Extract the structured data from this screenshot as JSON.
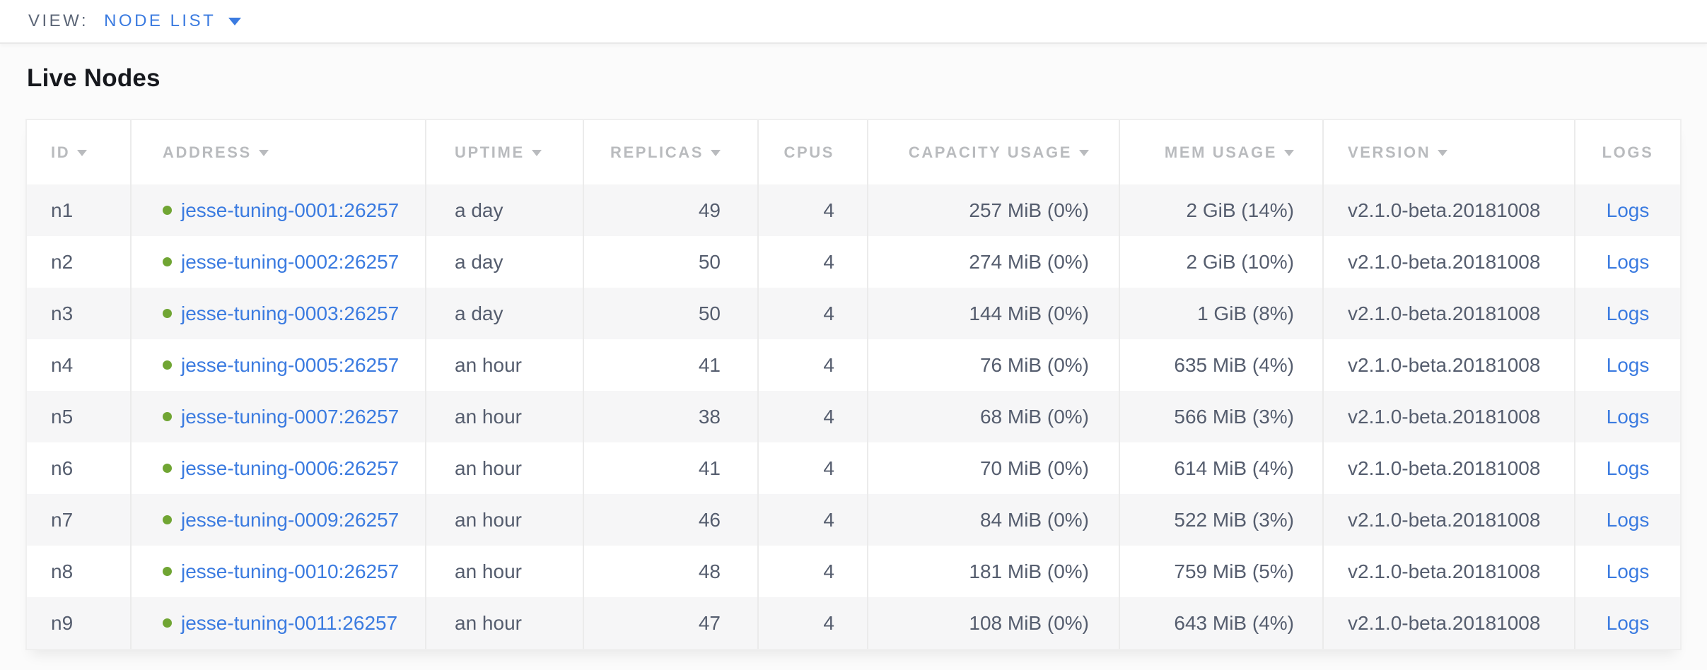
{
  "colors": {
    "link_blue": "#3b7be0",
    "status_green": "#70a533",
    "header_gray": "#b9bbbe",
    "cell_text": "#555d6e"
  },
  "view_bar": {
    "label": "VIEW:",
    "selected_view": "NODE LIST",
    "caret_icon": "caret-down"
  },
  "page": {
    "title": "Live Nodes"
  },
  "table": {
    "columns": [
      {
        "key": "id",
        "label": "ID",
        "sortable": true
      },
      {
        "key": "address",
        "label": "ADDRESS",
        "sortable": true
      },
      {
        "key": "uptime",
        "label": "UPTIME",
        "sortable": true
      },
      {
        "key": "replicas",
        "label": "REPLICAS",
        "sortable": true
      },
      {
        "key": "cpus",
        "label": "CPUS",
        "sortable": false
      },
      {
        "key": "capacity",
        "label": "CAPACITY USAGE",
        "sortable": true
      },
      {
        "key": "mem",
        "label": "MEM USAGE",
        "sortable": true
      },
      {
        "key": "version",
        "label": "VERSION",
        "sortable": true
      },
      {
        "key": "logs",
        "label": "LOGS",
        "sortable": false
      }
    ],
    "rows": [
      {
        "id": "n1",
        "status": "healthy",
        "address": "jesse-tuning-0001:26257",
        "uptime": "a day",
        "replicas": "49",
        "cpus": "4",
        "capacity": "257 MiB (0%)",
        "mem": "2 GiB (14%)",
        "version": "v2.1.0-beta.20181008",
        "logs": "Logs"
      },
      {
        "id": "n2",
        "status": "healthy",
        "address": "jesse-tuning-0002:26257",
        "uptime": "a day",
        "replicas": "50",
        "cpus": "4",
        "capacity": "274 MiB (0%)",
        "mem": "2 GiB (10%)",
        "version": "v2.1.0-beta.20181008",
        "logs": "Logs"
      },
      {
        "id": "n3",
        "status": "healthy",
        "address": "jesse-tuning-0003:26257",
        "uptime": "a day",
        "replicas": "50",
        "cpus": "4",
        "capacity": "144 MiB (0%)",
        "mem": "1 GiB (8%)",
        "version": "v2.1.0-beta.20181008",
        "logs": "Logs"
      },
      {
        "id": "n4",
        "status": "healthy",
        "address": "jesse-tuning-0005:26257",
        "uptime": "an hour",
        "replicas": "41",
        "cpus": "4",
        "capacity": "76 MiB (0%)",
        "mem": "635 MiB (4%)",
        "version": "v2.1.0-beta.20181008",
        "logs": "Logs"
      },
      {
        "id": "n5",
        "status": "healthy",
        "address": "jesse-tuning-0007:26257",
        "uptime": "an hour",
        "replicas": "38",
        "cpus": "4",
        "capacity": "68 MiB (0%)",
        "mem": "566 MiB (3%)",
        "version": "v2.1.0-beta.20181008",
        "logs": "Logs"
      },
      {
        "id": "n6",
        "status": "healthy",
        "address": "jesse-tuning-0006:26257",
        "uptime": "an hour",
        "replicas": "41",
        "cpus": "4",
        "capacity": "70 MiB (0%)",
        "mem": "614 MiB (4%)",
        "version": "v2.1.0-beta.20181008",
        "logs": "Logs"
      },
      {
        "id": "n7",
        "status": "healthy",
        "address": "jesse-tuning-0009:26257",
        "uptime": "an hour",
        "replicas": "46",
        "cpus": "4",
        "capacity": "84 MiB (0%)",
        "mem": "522 MiB (3%)",
        "version": "v2.1.0-beta.20181008",
        "logs": "Logs"
      },
      {
        "id": "n8",
        "status": "healthy",
        "address": "jesse-tuning-0010:26257",
        "uptime": "an hour",
        "replicas": "48",
        "cpus": "4",
        "capacity": "181 MiB (0%)",
        "mem": "759 MiB (5%)",
        "version": "v2.1.0-beta.20181008",
        "logs": "Logs"
      },
      {
        "id": "n9",
        "status": "healthy",
        "address": "jesse-tuning-0011:26257",
        "uptime": "an hour",
        "replicas": "47",
        "cpus": "4",
        "capacity": "108 MiB (0%)",
        "mem": "643 MiB (4%)",
        "version": "v2.1.0-beta.20181008",
        "logs": "Logs"
      }
    ]
  }
}
